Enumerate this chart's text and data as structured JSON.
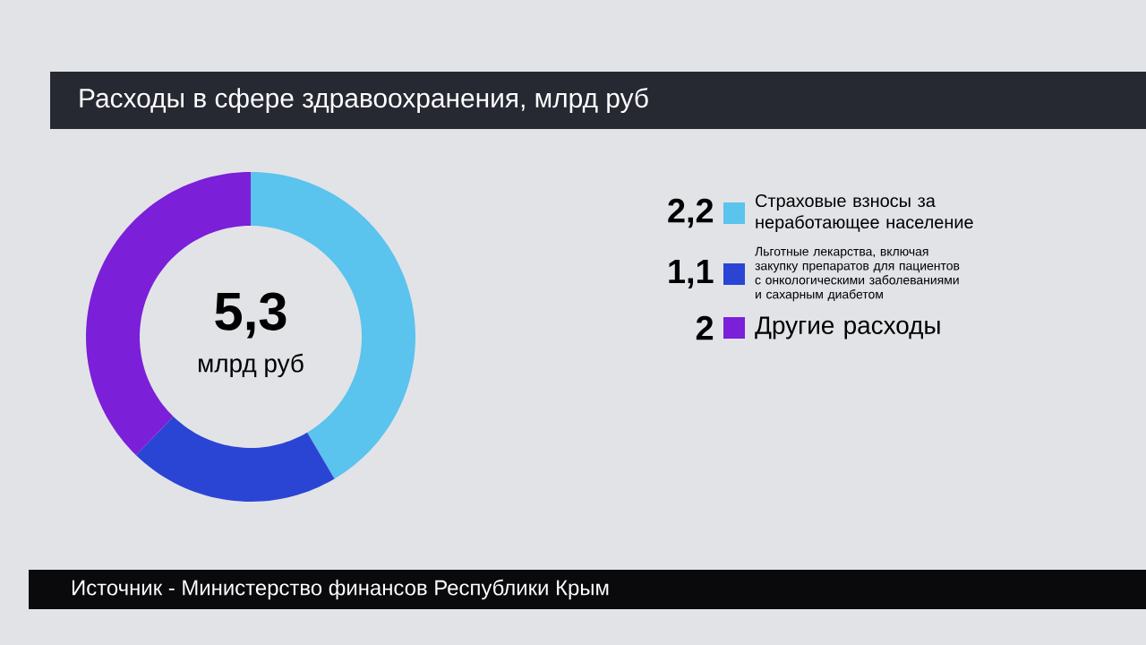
{
  "chart_data": {
    "type": "donut",
    "title": "Расходы в сфере здравоохранения, млрд руб",
    "categories": [
      "Страховые взносы за неработающее население",
      "Льготные лекарства, включая закупку препаратов для пациентов с онкологическими заболеваниями и сахарным диабетом",
      "Другие расходы"
    ],
    "values": [
      2.2,
      1.1,
      2
    ],
    "value_labels": [
      "2,2",
      "1,1",
      "2"
    ],
    "colors": [
      "#5ac3ee",
      "#2a45d4",
      "#7b1fd8"
    ],
    "legend": "right",
    "annotations": [
      "5,3",
      "млрд руб",
      "Источник - Министерство финансов Республики Крым"
    ]
  }
}
